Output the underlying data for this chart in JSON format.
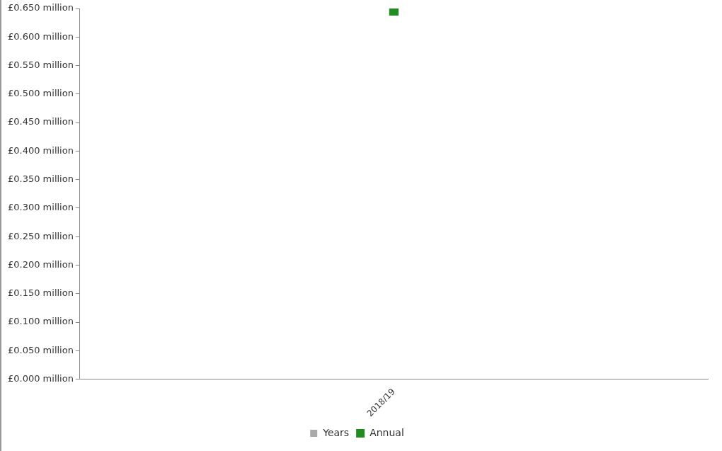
{
  "chart_data": {
    "type": "line",
    "categories": [
      "2018/19"
    ],
    "series": [
      {
        "name": "Years",
        "type": "bar",
        "color": "#aaaaaa",
        "values": [
          null
        ]
      },
      {
        "name": "Annual",
        "color": "#228b22",
        "values": [
          0.646
        ]
      }
    ],
    "ylim": [
      0,
      0.65
    ],
    "yticks": [
      {
        "value": 0,
        "label": "£0.000 million"
      },
      {
        "value": 0.05,
        "label": "£0.050 million"
      },
      {
        "value": 0.1,
        "label": "£0.100 million"
      },
      {
        "value": 0.15,
        "label": "£0.150 million"
      },
      {
        "value": 0.2,
        "label": "£0.200 million"
      },
      {
        "value": 0.25,
        "label": "£0.250 million"
      },
      {
        "value": 0.3,
        "label": "£0.300 million"
      },
      {
        "value": 0.35,
        "label": "£0.350 million"
      },
      {
        "value": 0.4,
        "label": "£0.400 million"
      },
      {
        "value": 0.45,
        "label": "£0.450 million"
      },
      {
        "value": 0.5,
        "label": "£0.500 million"
      },
      {
        "value": 0.55,
        "label": "£0.550 million"
      },
      {
        "value": 0.6,
        "label": "£0.600 million"
      },
      {
        "value": 0.65,
        "label": "£0.650 million"
      }
    ],
    "grid": false,
    "legend": "bottom",
    "marker": "square"
  }
}
